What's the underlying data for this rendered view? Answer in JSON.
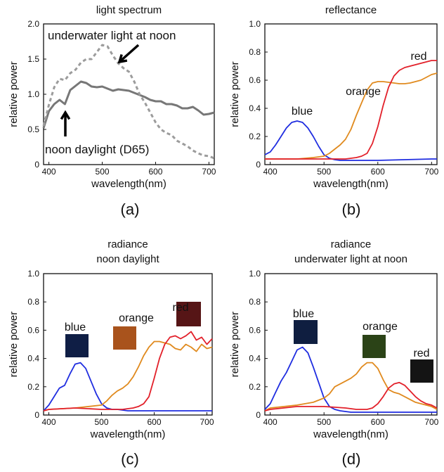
{
  "figure": {
    "captions": [
      "(a)",
      "(b)",
      "(c)",
      "(d)"
    ]
  },
  "colors": {
    "blue": "#1f2de0",
    "orange": "#e08a1e",
    "red": "#e2202a",
    "daylight": "#777777",
    "underwater": "#9c9c9c",
    "swatch_blue_c": "#0f1e45",
    "swatch_orange_c": "#a9531c",
    "swatch_red_c": "#561516",
    "swatch_blue_d": "#0f1e40",
    "swatch_orange_d": "#2b4317",
    "swatch_red_d": "#141414"
  },
  "chart_data": [
    {
      "panel": "a",
      "type": "line",
      "title": "light spectrum",
      "xlabel": "wavelength(nm)",
      "ylabel": "relative power",
      "xlim": [
        390,
        710
      ],
      "ylim": [
        0,
        2.0
      ],
      "xticks": [
        "400",
        "500",
        "600",
        "700"
      ],
      "yticks": [
        "0",
        "0.5",
        "1.0",
        "1.5",
        "2.0"
      ],
      "annotations": [
        "underwater light at noon",
        "noon daylight (D65)"
      ],
      "series": [
        {
          "key": "daylight",
          "style": "solid",
          "x": [
            390,
            400,
            410,
            420,
            430,
            440,
            450,
            460,
            470,
            480,
            490,
            500,
            510,
            520,
            530,
            540,
            550,
            560,
            570,
            580,
            590,
            600,
            610,
            620,
            630,
            640,
            650,
            660,
            670,
            680,
            690,
            700,
            710
          ],
          "y": [
            0.52,
            0.76,
            0.86,
            0.92,
            0.86,
            1.06,
            1.12,
            1.18,
            1.16,
            1.11,
            1.1,
            1.11,
            1.08,
            1.05,
            1.07,
            1.06,
            1.05,
            1.02,
            0.99,
            0.96,
            0.92,
            0.9,
            0.9,
            0.86,
            0.86,
            0.84,
            0.8,
            0.8,
            0.82,
            0.77,
            0.71,
            0.72,
            0.74
          ]
        },
        {
          "key": "underwater",
          "style": "dashed",
          "x": [
            390,
            400,
            410,
            420,
            430,
            440,
            450,
            460,
            470,
            480,
            490,
            500,
            510,
            520,
            530,
            540,
            550,
            560,
            570,
            580,
            590,
            600,
            610,
            620,
            630,
            640,
            650,
            660,
            670,
            680,
            690,
            700,
            710
          ],
          "y": [
            0.55,
            0.85,
            1.1,
            1.22,
            1.2,
            1.3,
            1.35,
            1.45,
            1.5,
            1.5,
            1.6,
            1.7,
            1.68,
            1.55,
            1.44,
            1.37,
            1.32,
            1.18,
            1.0,
            0.88,
            0.74,
            0.6,
            0.5,
            0.45,
            0.42,
            0.34,
            0.3,
            0.26,
            0.2,
            0.16,
            0.13,
            0.12,
            0.09
          ]
        }
      ]
    },
    {
      "panel": "b",
      "type": "line",
      "title": "reflectance",
      "xlabel": "wavelength(nm)",
      "ylabel": "relative power",
      "xlim": [
        390,
        710
      ],
      "ylim": [
        0,
        1.0
      ],
      "xticks": [
        "400",
        "500",
        "600",
        "700"
      ],
      "yticks": [
        "0",
        "0.2",
        "0.4",
        "0.6",
        "0.8",
        "1.0"
      ],
      "series": [
        {
          "name": "blue",
          "key": "blue",
          "x": [
            390,
            400,
            410,
            420,
            430,
            440,
            450,
            460,
            470,
            480,
            490,
            500,
            510,
            520,
            530,
            540,
            550,
            600,
            650,
            700,
            710
          ],
          "y": [
            0.07,
            0.09,
            0.14,
            0.2,
            0.26,
            0.3,
            0.31,
            0.3,
            0.26,
            0.2,
            0.13,
            0.07,
            0.045,
            0.035,
            0.03,
            0.03,
            0.03,
            0.03,
            0.035,
            0.04,
            0.04
          ]
        },
        {
          "name": "orange",
          "key": "orange",
          "x": [
            390,
            450,
            480,
            500,
            510,
            520,
            530,
            540,
            550,
            560,
            570,
            580,
            590,
            600,
            610,
            620,
            630,
            640,
            650,
            660,
            670,
            680,
            690,
            700,
            710
          ],
          "y": [
            0.04,
            0.04,
            0.05,
            0.06,
            0.08,
            0.11,
            0.14,
            0.18,
            0.25,
            0.35,
            0.44,
            0.53,
            0.58,
            0.59,
            0.59,
            0.585,
            0.58,
            0.575,
            0.575,
            0.58,
            0.59,
            0.6,
            0.62,
            0.64,
            0.65
          ]
        },
        {
          "name": "red",
          "key": "red",
          "x": [
            390,
            500,
            520,
            540,
            550,
            560,
            570,
            580,
            590,
            600,
            610,
            620,
            630,
            640,
            650,
            660,
            670,
            680,
            690,
            700,
            710
          ],
          "y": [
            0.04,
            0.04,
            0.04,
            0.04,
            0.045,
            0.05,
            0.06,
            0.08,
            0.15,
            0.27,
            0.42,
            0.55,
            0.63,
            0.67,
            0.69,
            0.7,
            0.71,
            0.72,
            0.73,
            0.74,
            0.74
          ]
        }
      ]
    },
    {
      "panel": "c",
      "type": "line",
      "title": "radiance",
      "subtitle": "noon daylight",
      "xlabel": "wavelength(nm)",
      "ylabel": "relative power",
      "xlim": [
        390,
        710
      ],
      "ylim": [
        0,
        1.0
      ],
      "xticks": [
        "400",
        "500",
        "600",
        "700"
      ],
      "yticks": [
        "0",
        "0.2",
        "0.4",
        "0.6",
        "0.8",
        "1.0"
      ],
      "series": [
        {
          "name": "blue",
          "key": "blue",
          "x": [
            390,
            400,
            410,
            420,
            430,
            440,
            450,
            460,
            470,
            480,
            490,
            500,
            510,
            520,
            530,
            540,
            550,
            600,
            650,
            700,
            710
          ],
          "y": [
            0.03,
            0.07,
            0.13,
            0.19,
            0.21,
            0.29,
            0.36,
            0.37,
            0.33,
            0.24,
            0.15,
            0.08,
            0.05,
            0.04,
            0.04,
            0.035,
            0.03,
            0.03,
            0.03,
            0.03,
            0.03
          ]
        },
        {
          "name": "orange",
          "key": "orange",
          "x": [
            390,
            400,
            450,
            500,
            510,
            520,
            530,
            540,
            550,
            560,
            570,
            580,
            590,
            600,
            610,
            620,
            630,
            640,
            650,
            660,
            670,
            680,
            690,
            700,
            710
          ],
          "y": [
            0.03,
            0.04,
            0.05,
            0.07,
            0.1,
            0.14,
            0.17,
            0.19,
            0.22,
            0.27,
            0.34,
            0.42,
            0.48,
            0.52,
            0.52,
            0.51,
            0.5,
            0.47,
            0.46,
            0.5,
            0.48,
            0.45,
            0.5,
            0.47,
            0.48
          ]
        },
        {
          "name": "red",
          "key": "red",
          "x": [
            390,
            400,
            450,
            500,
            540,
            560,
            570,
            580,
            590,
            600,
            610,
            620,
            630,
            640,
            650,
            660,
            670,
            680,
            690,
            700,
            710
          ],
          "y": [
            0.03,
            0.04,
            0.05,
            0.04,
            0.04,
            0.05,
            0.06,
            0.08,
            0.13,
            0.26,
            0.4,
            0.5,
            0.55,
            0.56,
            0.54,
            0.56,
            0.59,
            0.53,
            0.55,
            0.5,
            0.54
          ]
        }
      ]
    },
    {
      "panel": "d",
      "type": "line",
      "title": "radiance",
      "subtitle": "underwater light at noon",
      "xlabel": "wavelength(nm)",
      "ylabel": "relative power",
      "xlim": [
        390,
        710
      ],
      "ylim": [
        0,
        1.0
      ],
      "xticks": [
        "400",
        "500",
        "600",
        "700"
      ],
      "yticks": [
        "0",
        "0.2",
        "0.4",
        "0.6",
        "0.8",
        "1.0"
      ],
      "series": [
        {
          "name": "blue",
          "key": "blue",
          "x": [
            390,
            400,
            410,
            420,
            430,
            440,
            450,
            460,
            470,
            480,
            490,
            500,
            510,
            520,
            530,
            540,
            550,
            600,
            650,
            700,
            710
          ],
          "y": [
            0.04,
            0.08,
            0.16,
            0.24,
            0.3,
            0.38,
            0.46,
            0.48,
            0.44,
            0.34,
            0.23,
            0.12,
            0.06,
            0.04,
            0.03,
            0.025,
            0.02,
            0.02,
            0.02,
            0.02,
            0.02
          ]
        },
        {
          "name": "orange",
          "key": "orange",
          "x": [
            390,
            400,
            450,
            480,
            500,
            510,
            520,
            530,
            540,
            550,
            560,
            570,
            580,
            590,
            600,
            610,
            620,
            630,
            640,
            650,
            660,
            670,
            680,
            690,
            700,
            710
          ],
          "y": [
            0.03,
            0.05,
            0.07,
            0.09,
            0.12,
            0.15,
            0.2,
            0.22,
            0.24,
            0.26,
            0.29,
            0.34,
            0.37,
            0.37,
            0.33,
            0.25,
            0.18,
            0.16,
            0.15,
            0.13,
            0.11,
            0.09,
            0.08,
            0.07,
            0.06,
            0.04
          ]
        },
        {
          "name": "red",
          "key": "red",
          "x": [
            390,
            400,
            450,
            500,
            540,
            560,
            580,
            590,
            600,
            610,
            620,
            630,
            640,
            650,
            660,
            670,
            680,
            690,
            700,
            710
          ],
          "y": [
            0.03,
            0.04,
            0.06,
            0.06,
            0.05,
            0.04,
            0.04,
            0.05,
            0.08,
            0.13,
            0.19,
            0.22,
            0.23,
            0.21,
            0.17,
            0.13,
            0.1,
            0.08,
            0.07,
            0.05
          ]
        }
      ]
    }
  ]
}
